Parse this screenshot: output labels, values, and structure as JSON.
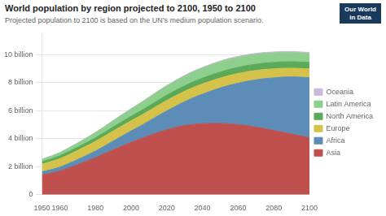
{
  "chart_data": {
    "type": "area",
    "stacked": true,
    "title": "World population by region projected to 2100, 1950 to 2100",
    "subtitle": "Projected population to 2100 is based on the UN’s medium population scenario.",
    "annotations": [
      "Our World\nin Data"
    ],
    "x": [
      1950,
      1955,
      1960,
      1965,
      1970,
      1975,
      1980,
      1985,
      1990,
      1995,
      2000,
      2005,
      2010,
      2015,
      2020,
      2025,
      2030,
      2035,
      2040,
      2045,
      2050,
      2055,
      2060,
      2065,
      2070,
      2075,
      2080,
      2085,
      2090,
      2095,
      2100
    ],
    "series": [
      {
        "name": "Asia",
        "color": "#c0504d",
        "values": [
          1.4,
          1.53,
          1.68,
          1.9,
          2.14,
          2.39,
          2.64,
          2.92,
          3.2,
          3.47,
          3.74,
          3.97,
          4.21,
          4.43,
          4.64,
          4.8,
          4.94,
          5.02,
          5.07,
          5.09,
          5.09,
          5.06,
          5.0,
          4.93,
          4.82,
          4.71,
          4.58,
          4.46,
          4.33,
          4.2,
          4.07
        ]
      },
      {
        "name": "Africa",
        "color": "#5b8db8",
        "values": [
          0.23,
          0.25,
          0.28,
          0.32,
          0.36,
          0.41,
          0.47,
          0.54,
          0.63,
          0.72,
          0.81,
          0.92,
          1.04,
          1.19,
          1.34,
          1.52,
          1.7,
          1.91,
          2.11,
          2.32,
          2.53,
          2.75,
          2.96,
          3.17,
          3.38,
          3.58,
          3.76,
          3.93,
          4.08,
          4.19,
          4.28
        ]
      },
      {
        "name": "Europe",
        "color": "#d4c24a",
        "values": [
          0.549,
          0.575,
          0.604,
          0.634,
          0.657,
          0.676,
          0.693,
          0.706,
          0.722,
          0.728,
          0.73,
          0.733,
          0.738,
          0.744,
          0.748,
          0.745,
          0.74,
          0.734,
          0.727,
          0.717,
          0.71,
          0.7,
          0.69,
          0.679,
          0.667,
          0.656,
          0.645,
          0.635,
          0.626,
          0.62,
          0.63
        ]
      },
      {
        "name": "North America",
        "color": "#5aaa5a",
        "values": [
          0.172,
          0.186,
          0.204,
          0.217,
          0.231,
          0.243,
          0.256,
          0.272,
          0.285,
          0.298,
          0.314,
          0.327,
          0.344,
          0.361,
          0.374,
          0.385,
          0.394,
          0.402,
          0.41,
          0.419,
          0.425,
          0.432,
          0.438,
          0.443,
          0.447,
          0.45,
          0.453,
          0.455,
          0.457,
          0.459,
          0.465
        ]
      },
      {
        "name": "Latin America",
        "color": "#8ecf8e",
        "values": [
          0.168,
          0.195,
          0.22,
          0.254,
          0.287,
          0.323,
          0.362,
          0.4,
          0.441,
          0.48,
          0.521,
          0.56,
          0.596,
          0.63,
          0.654,
          0.674,
          0.695,
          0.71,
          0.722,
          0.729,
          0.732,
          0.73,
          0.722,
          0.714,
          0.706,
          0.694,
          0.682,
          0.67,
          0.657,
          0.646,
          0.637
        ]
      },
      {
        "name": "Oceania",
        "color": "#c9b8d8",
        "values": [
          0.013,
          0.014,
          0.016,
          0.017,
          0.019,
          0.021,
          0.023,
          0.025,
          0.027,
          0.029,
          0.031,
          0.033,
          0.036,
          0.039,
          0.042,
          0.045,
          0.048,
          0.051,
          0.054,
          0.056,
          0.059,
          0.061,
          0.064,
          0.066,
          0.068,
          0.07,
          0.072,
          0.074,
          0.075,
          0.077,
          0.078
        ]
      }
    ],
    "xlim": [
      1950,
      2100
    ],
    "xticks": [
      1950,
      1960,
      1980,
      2000,
      2020,
      2040,
      2060,
      2080,
      2100
    ],
    "ylim": [
      0,
      11.5
    ],
    "yticks": [
      0,
      {
        "value": 2,
        "label": "2 billion"
      },
      {
        "value": 4,
        "label": "4 billion"
      },
      {
        "value": 6,
        "label": "6 billion"
      },
      {
        "value": 8,
        "label": "8 billion"
      },
      {
        "value": 10,
        "label": "10 billion"
      }
    ],
    "grid": "y",
    "legend": "right"
  }
}
